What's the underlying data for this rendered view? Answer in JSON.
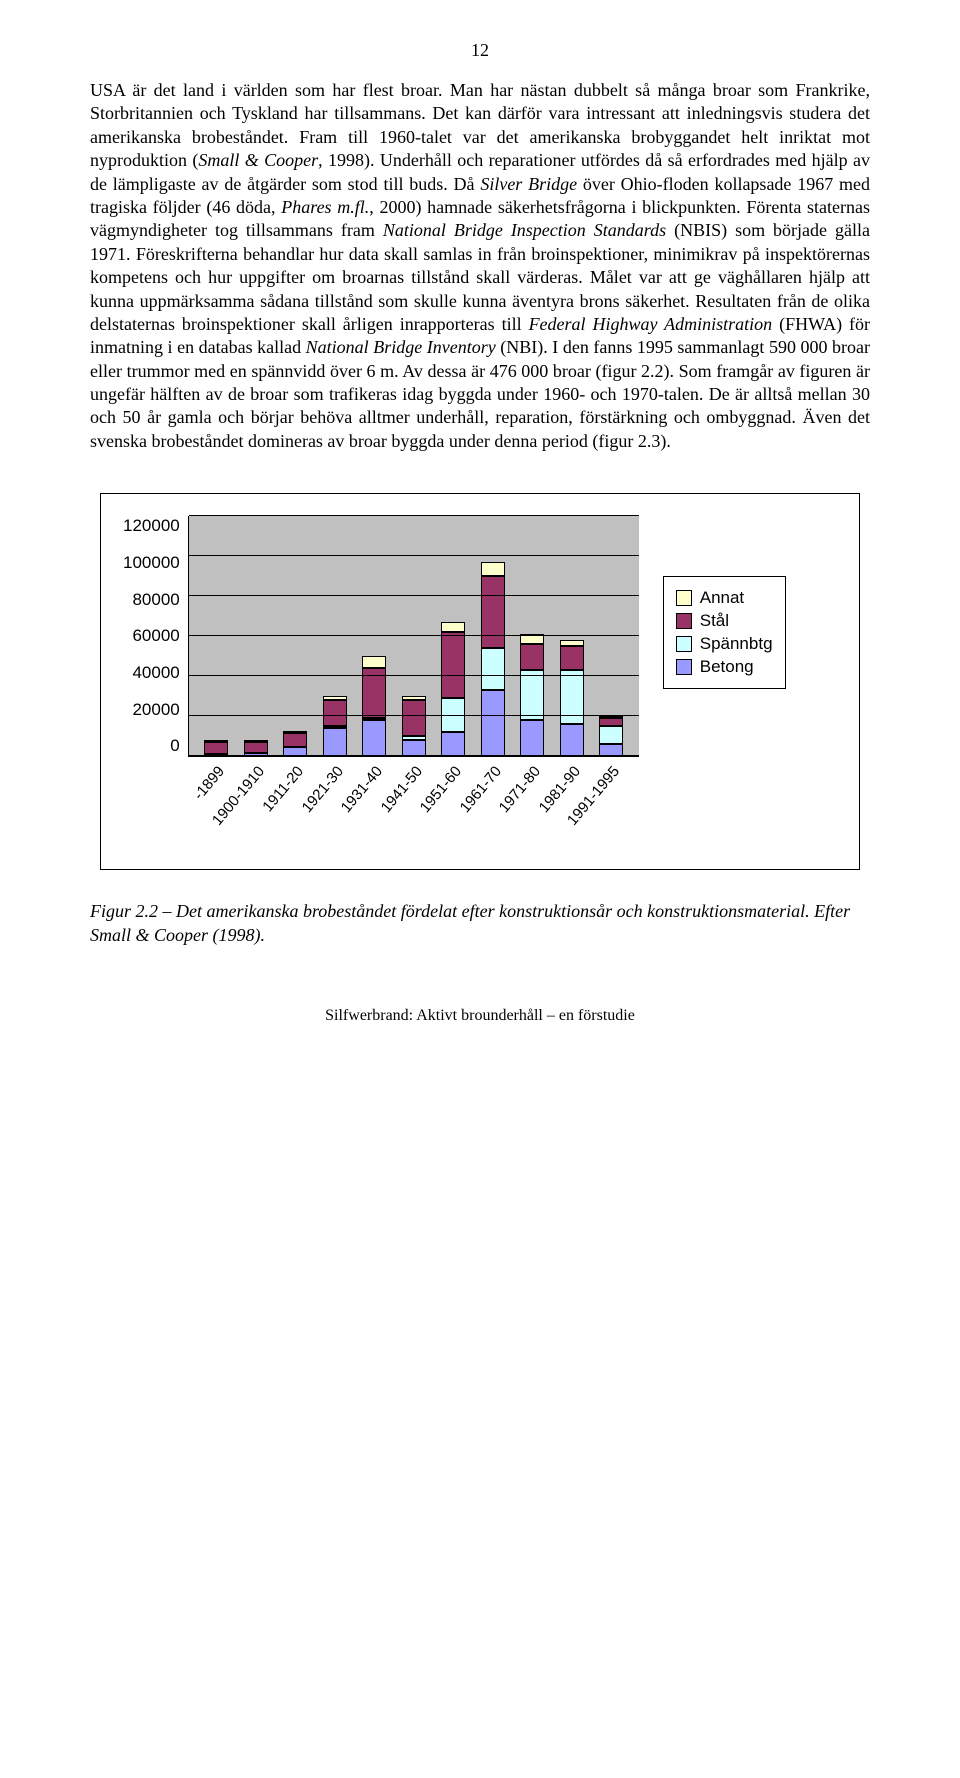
{
  "page_number": "12",
  "paragraph_html": "USA är det land i världen som har flest broar. Man har nästan dubbelt så många broar som Frankrike, Storbritannien och Tyskland har tillsammans. Det kan därför vara intressant att inledningsvis studera det amerikanska brobeståndet. Fram till 1960-talet var det amerikanska brobyggandet helt inriktat mot nyproduktion (<i>Small & Cooper</i>, 1998). Underhåll och reparationer utfördes då så erfordrades med hjälp av de lämpligaste av de åtgärder som stod till buds. Då <i>Silver Bridge</i> över Ohio-floden kollapsade 1967 med tragiska följder (46 döda, <i>Phares m.fl.</i>, 2000) hamnade säkerhetsfrågorna i blickpunkten. Förenta staternas vägmyndigheter tog tillsammans fram <i>National Bridge Inspection Standards</i> (NBIS) som började gälla 1971. Föreskrifterna behandlar hur data skall samlas in från broinspektioner, minimikrav på inspektörernas kompetens och hur uppgifter om broarnas tillstånd skall värderas. Målet var att ge väghållaren hjälp att kunna uppmärksamma sådana tillstånd som skulle kunna äventyra brons säkerhet. Resultaten från de olika delstaternas broinspektioner skall årligen inrapporteras till <i>Federal Highway Administration</i> (FHWA) för inmatning i en databas kallad <i>National Bridge Inventory</i> (NBI). I den fanns 1995 sammanlagt 590 000 broar eller trummor med en spännvidd över 6 m. Av dessa är 476 000 broar (figur 2.2). Som framgår av figuren är ungefär hälften av de broar som trafikeras idag byggda under 1960- och 1970-talen. De är alltså mellan 30 och 50 år gamla och börjar behöva alltmer underhåll, reparation, förstärkning och ombyggnad. Även det svenska brobeståndet domineras av broar byggda under denna period (figur 2.3).",
  "chart": {
    "type": "stacked-bar",
    "y_ticks": [
      "120000",
      "100000",
      "80000",
      "60000",
      "40000",
      "20000",
      "0"
    ],
    "y_max": 120000,
    "plot_bg": "#c0c0c0",
    "grid_color": "#000000",
    "series": [
      {
        "key": "annat",
        "label": "Annat",
        "color": "#ffffcc"
      },
      {
        "key": "stal",
        "label": "Stål",
        "color": "#993366"
      },
      {
        "key": "spannbtg",
        "label": "Spännbtg",
        "color": "#ccffff"
      },
      {
        "key": "betong",
        "label": "Betong",
        "color": "#9999ff"
      }
    ],
    "categories": [
      "-1899",
      "1900-1910",
      "1911-20",
      "1921-30",
      "1931-40",
      "1941-50",
      "1951-60",
      "1961-70",
      "1971-80",
      "1981-90",
      "1991-1995"
    ],
    "data": [
      {
        "betong": 1000,
        "spannbtg": 0,
        "stal": 6000,
        "annat": 1000
      },
      {
        "betong": 1500,
        "spannbtg": 0,
        "stal": 5500,
        "annat": 500
      },
      {
        "betong": 4500,
        "spannbtg": 0,
        "stal": 7000,
        "annat": 500
      },
      {
        "betong": 14000,
        "spannbtg": 1000,
        "stal": 13000,
        "annat": 2000
      },
      {
        "betong": 18000,
        "spannbtg": 1000,
        "stal": 25000,
        "annat": 6000
      },
      {
        "betong": 8000,
        "spannbtg": 2000,
        "stal": 18000,
        "annat": 2000
      },
      {
        "betong": 12000,
        "spannbtg": 17000,
        "stal": 33000,
        "annat": 5000
      },
      {
        "betong": 33000,
        "spannbtg": 21000,
        "stal": 36000,
        "annat": 7000
      },
      {
        "betong": 18000,
        "spannbtg": 25000,
        "stal": 13000,
        "annat": 5000
      },
      {
        "betong": 16000,
        "spannbtg": 27000,
        "stal": 12000,
        "annat": 3000
      },
      {
        "betong": 6000,
        "spannbtg": 9000,
        "stal": 4000,
        "annat": 1000
      }
    ]
  },
  "figure_caption": "Figur 2.2 – Det amerikanska brobeståndet fördelat efter konstruktionsår och konstruktionsmaterial. Efter Small & Cooper (1998).",
  "footer": "Silfwerbrand: Aktivt brounderhåll – en förstudie"
}
